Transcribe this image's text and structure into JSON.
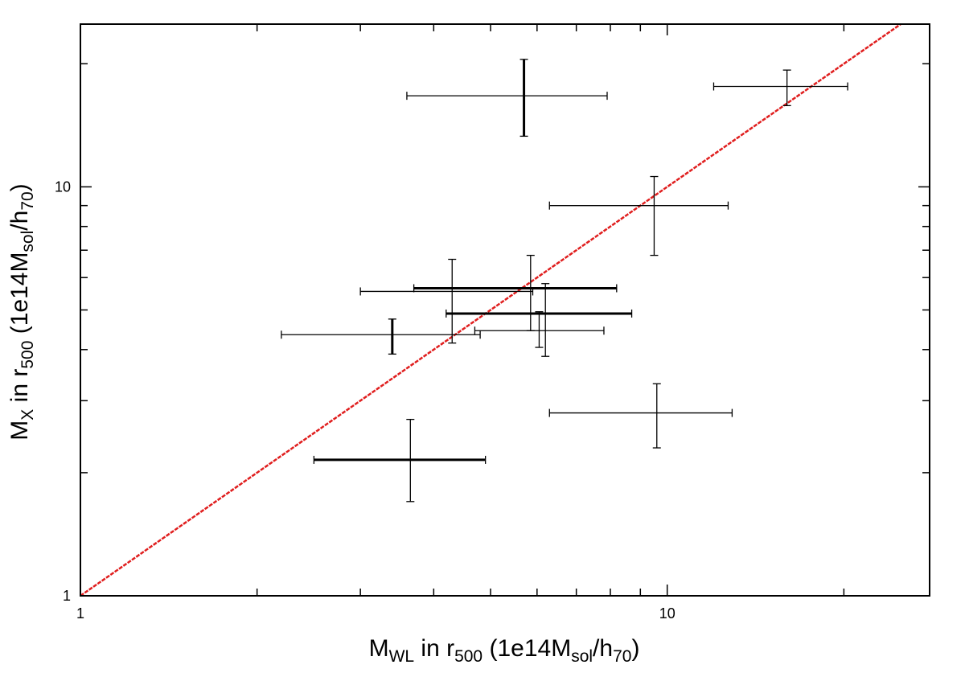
{
  "chart_data": {
    "type": "scatter",
    "scale": {
      "x": "log",
      "y": "log"
    },
    "xlim": [
      1,
      28
    ],
    "ylim": [
      1,
      25
    ],
    "grid": false,
    "xlabel": {
      "main": "M",
      "main_sub": "WL",
      "mid": " in r",
      "mid_sub": "500",
      "tail": " (1e14M",
      "tail_sub": "sol",
      "end": "/h",
      "end_sub": "70",
      "close": ")"
    },
    "ylabel": {
      "main": "M",
      "main_sub": "X",
      "mid": " in r",
      "mid_sub": "500",
      "tail": " (1e14M",
      "tail_sub": "sol",
      "end": "/h",
      "end_sub": "70",
      "close": ")"
    },
    "x_tick_labels": [
      {
        "value": 1,
        "label": "1"
      },
      {
        "value": 10,
        "label": "10"
      }
    ],
    "y_tick_labels": [
      {
        "value": 1,
        "label": "1"
      },
      {
        "value": 10,
        "label": "10"
      }
    ],
    "reference_line": {
      "type": "y=x",
      "color": "#e01e1e"
    },
    "points": [
      {
        "x": 5.7,
        "y": 16.7,
        "x_err": [
          3.6,
          7.9
        ],
        "y_err": [
          13.3,
          20.5
        ],
        "bold_x": false,
        "bold_y": true
      },
      {
        "x": 16.0,
        "y": 17.6,
        "x_err": [
          12.0,
          20.3
        ],
        "y_err": [
          15.8,
          19.3
        ],
        "bold_x": false,
        "bold_y": false
      },
      {
        "x": 9.5,
        "y": 9.0,
        "x_err": [
          6.3,
          12.7
        ],
        "y_err": [
          6.8,
          10.6
        ],
        "bold_x": false,
        "bold_y": false
      },
      {
        "x": 4.3,
        "y": 5.55,
        "x_err": [
          3.0,
          5.9
        ],
        "y_err": [
          4.15,
          6.65
        ],
        "bold_x": false,
        "bold_y": false
      },
      {
        "x": 5.85,
        "y": 5.65,
        "x_err": [
          3.7,
          8.2
        ],
        "y_err": [
          4.45,
          6.8
        ],
        "bold_x": true,
        "bold_y": false
      },
      {
        "x": 6.2,
        "y": 4.9,
        "x_err": [
          4.2,
          8.7
        ],
        "y_err": [
          3.85,
          5.8
        ],
        "bold_x": true,
        "bold_y": false
      },
      {
        "x": 6.05,
        "y": 4.45,
        "x_err": [
          4.7,
          7.8
        ],
        "y_err": [
          4.05,
          4.95
        ],
        "bold_x": false,
        "bold_y": false
      },
      {
        "x": 3.4,
        "y": 4.35,
        "x_err": [
          2.2,
          4.8
        ],
        "y_err": [
          3.9,
          4.75
        ],
        "bold_x": false,
        "bold_y": true
      },
      {
        "x": 3.65,
        "y": 2.15,
        "x_err": [
          2.5,
          4.9
        ],
        "y_err": [
          1.7,
          2.7
        ],
        "bold_x": true,
        "bold_y": false
      },
      {
        "x": 9.6,
        "y": 2.8,
        "x_err": [
          6.3,
          12.9
        ],
        "y_err": [
          2.3,
          3.3
        ],
        "bold_x": false,
        "bold_y": false
      }
    ]
  }
}
